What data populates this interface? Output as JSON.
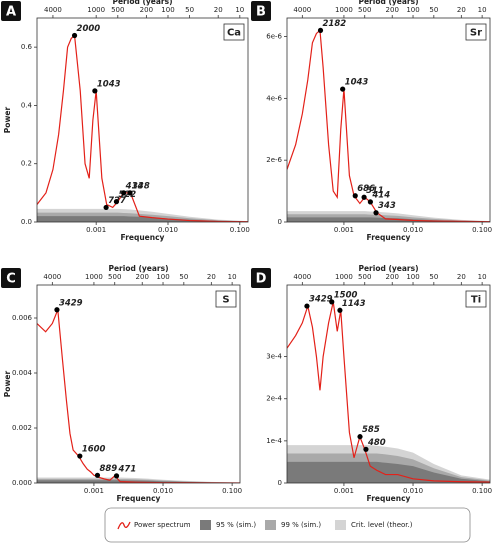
{
  "chart_data": [
    {
      "type": "line",
      "panel_label": "A",
      "element": "Ca",
      "x_label": "Frequency",
      "x2_label": "Period (years)",
      "y_label": "Power",
      "log_x": true,
      "xlim": [
        0.00015,
        0.13
      ],
      "xticks": [
        0.001,
        {
          "value": 0.01,
          "label": "0.010"
        },
        {
          "value": 0.1,
          "label": "0.100"
        }
      ],
      "x2ticks": [
        4000,
        1000,
        500,
        200,
        100,
        50,
        20,
        10
      ],
      "ylim": [
        0,
        0.7
      ],
      "yticks": [
        {
          "value": 0,
          "label": "0.0"
        },
        0.2,
        0.4,
        0.6
      ],
      "x": [
        0.00015,
        0.0002,
        0.00025,
        0.0003,
        0.00035,
        0.0004,
        0.00045,
        0.0005,
        0.0006,
        0.0007,
        0.0008,
        0.0009,
        0.001,
        0.0012,
        0.0014,
        0.0017,
        0.002,
        0.0024,
        0.003,
        0.004,
        0.006,
        0.01,
        0.02,
        0.05,
        0.13
      ],
      "series": [
        {
          "name": "Power spectrum",
          "color": "#e32119",
          "values": [
            0.06,
            0.1,
            0.18,
            0.3,
            0.45,
            0.6,
            0.63,
            0.64,
            0.45,
            0.2,
            0.15,
            0.35,
            0.45,
            0.15,
            0.06,
            0.05,
            0.07,
            0.1,
            0.1,
            0.02,
            0.015,
            0.01,
            0.005,
            0.002,
            0.001
          ]
        },
        {
          "name": "95 % (sim.)",
          "color": "#7a7a7a",
          "values": [
            0.02,
            0.02,
            0.02,
            0.02,
            0.02,
            0.02,
            0.02,
            0.02,
            0.02,
            0.02,
            0.02,
            0.02,
            0.02,
            0.02,
            0.02,
            0.02,
            0.02,
            0.02,
            0.019,
            0.018,
            0.016,
            0.012,
            0.008,
            0.004,
            0.001
          ]
        },
        {
          "name": "99 % (sim.)",
          "color": "#a9a9a9",
          "values": [
            0.032,
            0.032,
            0.032,
            0.032,
            0.032,
            0.032,
            0.032,
            0.032,
            0.032,
            0.032,
            0.032,
            0.032,
            0.032,
            0.032,
            0.032,
            0.032,
            0.032,
            0.031,
            0.03,
            0.028,
            0.025,
            0.02,
            0.013,
            0.006,
            0.002
          ]
        },
        {
          "name": "Crit. level (theor.)",
          "color": "#d4d4d4",
          "values": [
            0.045,
            0.045,
            0.045,
            0.045,
            0.045,
            0.045,
            0.045,
            0.045,
            0.045,
            0.045,
            0.045,
            0.045,
            0.045,
            0.045,
            0.045,
            0.045,
            0.045,
            0.044,
            0.043,
            0.04,
            0.035,
            0.028,
            0.018,
            0.008,
            0.003
          ]
        }
      ],
      "peaks": {
        "periods": [
          2000,
          1043,
          727,
          522,
          414,
          338
        ],
        "power": [
          0.64,
          0.45,
          0.05,
          0.07,
          0.1,
          0.1
        ]
      }
    },
    {
      "type": "line",
      "panel_label": "B",
      "element": "Sr",
      "x_label": "Frequency",
      "x2_label": "Period (years)",
      "log_x": true,
      "xlim": [
        0.00015,
        0.13
      ],
      "xticks": [
        0.001,
        {
          "value": 0.01,
          "label": "0.010"
        },
        {
          "value": 0.1,
          "label": "0.100"
        }
      ],
      "x2ticks": [
        4000,
        1000,
        500,
        200,
        100,
        50,
        20,
        10
      ],
      "ylim": [
        0,
        6.6e-06
      ],
      "yticks": [
        0,
        {
          "value": 2e-06,
          "label": "2e-6"
        },
        {
          "value": 4e-06,
          "label": "4e-6"
        },
        {
          "value": 6e-06,
          "label": "6e-6"
        }
      ],
      "x": [
        0.00015,
        0.0002,
        0.00025,
        0.0003,
        0.00035,
        0.0004,
        0.00045,
        0.0005,
        0.0006,
        0.0007,
        0.0008,
        0.0009,
        0.001,
        0.0012,
        0.0014,
        0.0017,
        0.002,
        0.0024,
        0.003,
        0.004,
        0.006,
        0.01,
        0.02,
        0.05,
        0.13
      ],
      "series": [
        {
          "name": "Power spectrum",
          "color": "#e32119",
          "values": [
            1.7e-06,
            2.5e-06,
            3.5e-06,
            4.6e-06,
            5.8e-06,
            6.1e-06,
            6.2e-06,
            5e-06,
            2.5e-06,
            1e-06,
            8e-07,
            3e-06,
            4.3e-06,
            1.5e-06,
            8.5e-07,
            6e-07,
            8e-07,
            6.5e-07,
            3e-07,
            1e-07,
            8e-08,
            5e-08,
            3e-08,
            2e-08,
            1e-08
          ]
        },
        {
          "name": "95 % (sim.)",
          "color": "#7a7a7a",
          "values": [
            1.5e-07,
            1.5e-07,
            1.5e-07,
            1.5e-07,
            1.5e-07,
            1.5e-07,
            1.5e-07,
            1.5e-07,
            1.5e-07,
            1.5e-07,
            1.5e-07,
            1.5e-07,
            1.5e-07,
            1.5e-07,
            1.5e-07,
            1.5e-07,
            1.5e-07,
            1.5e-07,
            1.4e-07,
            1.3e-07,
            1.2e-07,
            9e-08,
            6e-08,
            3e-08,
            1e-08
          ]
        },
        {
          "name": "99 % (sim.)",
          "color": "#a9a9a9",
          "values": [
            2.5e-07,
            2.5e-07,
            2.5e-07,
            2.5e-07,
            2.5e-07,
            2.5e-07,
            2.5e-07,
            2.5e-07,
            2.5e-07,
            2.5e-07,
            2.5e-07,
            2.5e-07,
            2.5e-07,
            2.5e-07,
            2.5e-07,
            2.5e-07,
            2.5e-07,
            2.4e-07,
            2.3e-07,
            2.2e-07,
            2e-07,
            1.5e-07,
            1e-07,
            5e-08,
            2e-08
          ]
        },
        {
          "name": "Crit. level (theor.)",
          "color": "#d4d4d4",
          "values": [
            3.5e-07,
            3.5e-07,
            3.5e-07,
            3.5e-07,
            3.5e-07,
            3.5e-07,
            3.5e-07,
            3.5e-07,
            3.5e-07,
            3.5e-07,
            3.5e-07,
            3.5e-07,
            3.5e-07,
            3.5e-07,
            3.5e-07,
            3.5e-07,
            3.5e-07,
            3.4e-07,
            3.3e-07,
            3.1e-07,
            2.8e-07,
            2.2e-07,
            1.4e-07,
            7e-08,
            3e-08
          ]
        }
      ],
      "peaks": {
        "periods": [
          2182,
          1043,
          686,
          511,
          414,
          343
        ],
        "power": [
          6.2e-06,
          4.3e-06,
          8.5e-07,
          8e-07,
          6.5e-07,
          3e-07
        ]
      }
    },
    {
      "type": "line",
      "panel_label": "C",
      "element": "S",
      "x_label": "Frequency",
      "x2_label": "Period (years)",
      "y_label": "Power",
      "log_x": true,
      "xlim": [
        0.00015,
        0.13
      ],
      "xticks": [
        0.001,
        {
          "value": 0.01,
          "label": "0.010"
        },
        {
          "value": 0.1,
          "label": "0.100"
        }
      ],
      "x2ticks": [
        4000,
        1000,
        500,
        200,
        100,
        50,
        20,
        10
      ],
      "ylim": [
        0,
        0.0072
      ],
      "yticks": [
        {
          "value": 0,
          "label": "0.000"
        },
        0.002,
        0.004,
        0.006
      ],
      "x": [
        0.00015,
        0.0002,
        0.00025,
        0.0003,
        0.00035,
        0.0004,
        0.00045,
        0.0005,
        0.0006,
        0.0007,
        0.0008,
        0.0009,
        0.001,
        0.0012,
        0.0014,
        0.0017,
        0.002,
        0.0024,
        0.003,
        0.004,
        0.006,
        0.01,
        0.02,
        0.05,
        0.13
      ],
      "series": [
        {
          "name": "Power spectrum",
          "color": "#e32119",
          "values": [
            0.0058,
            0.0055,
            0.0058,
            0.0063,
            0.0045,
            0.003,
            0.0018,
            0.0012,
            0.00098,
            0.0007,
            0.0005,
            0.0004,
            0.00028,
            0.0002,
            0.00015,
            0.0001,
            0.00026,
            5e-05,
            4e-05,
            3e-05,
            2e-05,
            1e-05,
            1e-05,
            5e-06,
            2e-06
          ]
        },
        {
          "name": "95 % (sim.)",
          "color": "#7a7a7a",
          "values": [
            0.0001,
            0.0001,
            0.0001,
            0.0001,
            0.0001,
            0.0001,
            0.0001,
            0.0001,
            0.0001,
            0.0001,
            0.0001,
            0.0001,
            0.0001,
            0.0001,
            0.0001,
            0.0001,
            0.0001,
            0.0001,
            9e-05,
            9e-05,
            8e-05,
            6e-05,
            4e-05,
            2e-05,
            1e-05
          ]
        },
        {
          "name": "99 % (sim.)",
          "color": "#a9a9a9",
          "values": [
            0.00015,
            0.00015,
            0.00015,
            0.00015,
            0.00015,
            0.00015,
            0.00015,
            0.00015,
            0.00015,
            0.00015,
            0.00015,
            0.00015,
            0.00015,
            0.00015,
            0.00015,
            0.00015,
            0.00015,
            0.00014,
            0.00014,
            0.00013,
            0.00012,
            9e-05,
            6e-05,
            3e-05,
            1e-05
          ]
        },
        {
          "name": "Crit. level (theor.)",
          "color": "#d4d4d4",
          "values": [
            0.0002,
            0.0002,
            0.0002,
            0.0002,
            0.0002,
            0.0002,
            0.0002,
            0.0002,
            0.0002,
            0.0002,
            0.0002,
            0.0002,
            0.0002,
            0.0002,
            0.0002,
            0.0002,
            0.0002,
            0.0002,
            0.00019,
            0.00018,
            0.00016,
            0.00012,
            8e-05,
            4e-05,
            2e-05
          ]
        }
      ],
      "peaks": {
        "periods": [
          3429,
          1600,
          889,
          471
        ],
        "power": [
          0.0063,
          0.00098,
          0.00028,
          0.00026
        ]
      }
    },
    {
      "type": "line",
      "panel_label": "D",
      "element": "Ti",
      "x_label": "Frequency",
      "x2_label": "Period (years)",
      "log_x": true,
      "xlim": [
        0.00015,
        0.13
      ],
      "xticks": [
        0.001,
        {
          "value": 0.01,
          "label": "0.010"
        },
        {
          "value": 0.1,
          "label": "0.100"
        }
      ],
      "x2ticks": [
        4000,
        1000,
        500,
        200,
        100,
        50,
        20,
        10
      ],
      "ylim": [
        0,
        0.00047
      ],
      "yticks": [
        0,
        {
          "value": 0.0001,
          "label": "1e-4"
        },
        {
          "value": 0.0002,
          "label": "2e-4"
        },
        {
          "value": 0.0003,
          "label": "3e-4"
        }
      ],
      "x": [
        0.00015,
        0.0002,
        0.00025,
        0.0003,
        0.00035,
        0.0004,
        0.00045,
        0.0005,
        0.0006,
        0.0007,
        0.0008,
        0.0009,
        0.001,
        0.0012,
        0.0014,
        0.0017,
        0.002,
        0.0024,
        0.003,
        0.004,
        0.006,
        0.01,
        0.02,
        0.05,
        0.13
      ],
      "series": [
        {
          "name": "Power spectrum",
          "color": "#e32119",
          "values": [
            0.00032,
            0.00035,
            0.00038,
            0.00042,
            0.00037,
            0.0003,
            0.00022,
            0.0003,
            0.00038,
            0.00043,
            0.00036,
            0.00041,
            0.0003,
            0.00012,
            6e-05,
            0.00011,
            8e-05,
            4e-05,
            3e-05,
            2e-05,
            2e-05,
            1e-05,
            5e-06,
            3e-06,
            2e-06
          ]
        },
        {
          "name": "95 % (sim.)",
          "color": "#7a7a7a",
          "values": [
            5e-05,
            5e-05,
            5e-05,
            5e-05,
            5e-05,
            5e-05,
            5e-05,
            5e-05,
            5e-05,
            5e-05,
            5e-05,
            5e-05,
            5e-05,
            5e-05,
            5e-05,
            5e-05,
            5e-05,
            5e-05,
            5e-05,
            4.8e-05,
            4.5e-05,
            4e-05,
            2.5e-05,
            1e-05,
            4e-06
          ]
        },
        {
          "name": "99 % (sim.)",
          "color": "#a9a9a9",
          "values": [
            7e-05,
            7e-05,
            7e-05,
            7e-05,
            7e-05,
            7e-05,
            7e-05,
            7e-05,
            7e-05,
            7e-05,
            7e-05,
            7e-05,
            7e-05,
            7e-05,
            7e-05,
            7e-05,
            7e-05,
            7e-05,
            7e-05,
            6.8e-05,
            6.4e-05,
            5.6e-05,
            3.5e-05,
            1.4e-05,
            6e-06
          ]
        },
        {
          "name": "Crit. level (theor.)",
          "color": "#d4d4d4",
          "values": [
            9e-05,
            9e-05,
            9e-05,
            9e-05,
            9e-05,
            9e-05,
            9e-05,
            9e-05,
            9e-05,
            9e-05,
            9e-05,
            9e-05,
            9e-05,
            9e-05,
            9e-05,
            9e-05,
            9e-05,
            9e-05,
            8.8e-05,
            8.6e-05,
            8.2e-05,
            7.2e-05,
            4.5e-05,
            1.8e-05,
            8e-06
          ]
        }
      ],
      "peaks": {
        "periods": [
          3429,
          1500,
          1143,
          585,
          480
        ],
        "power": [
          0.00042,
          0.00043,
          0.00041,
          0.00011,
          8e-05
        ]
      }
    }
  ]
}
